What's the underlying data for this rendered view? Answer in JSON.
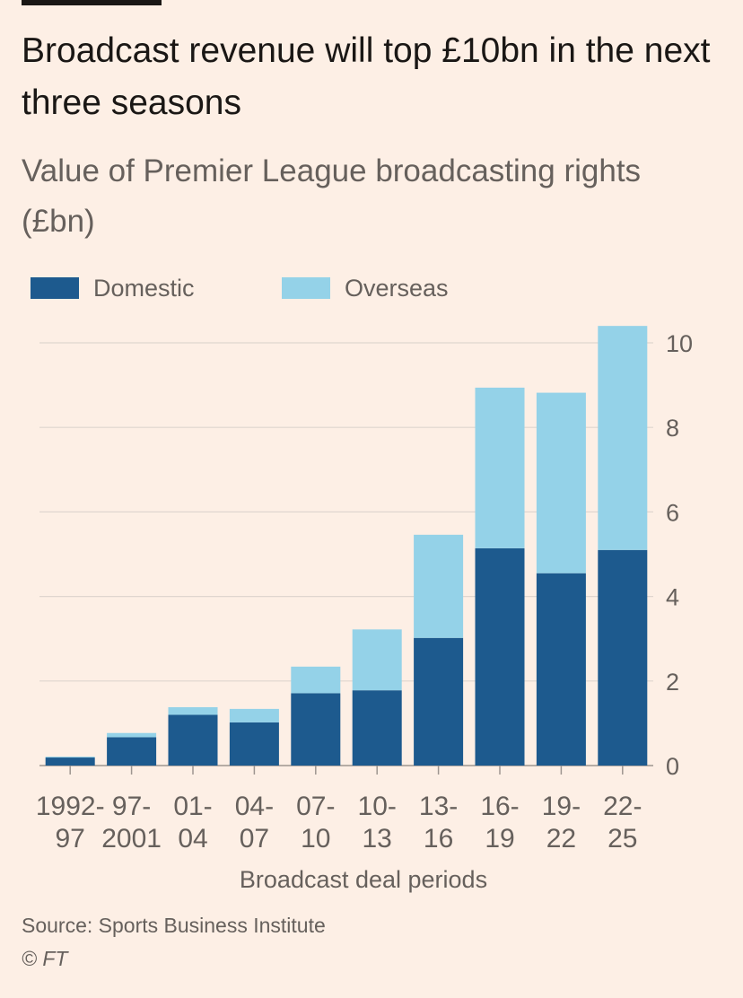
{
  "header": {
    "title": "Broadcast revenue will top £10bn in the next three seasons",
    "subtitle": "Value of Premier League broadcasting rights (£bn)"
  },
  "legend": {
    "domestic": "Domestic",
    "overseas": "Overseas"
  },
  "footer": {
    "source": "Source: Sports Business Institute",
    "copyright": "© FT"
  },
  "colors": {
    "domestic": "#1d5a8e",
    "overseas": "#94d2e8",
    "background": "#fdefe5",
    "grid": "#dfd6cf"
  },
  "chart_data": {
    "type": "bar",
    "stacked": true,
    "xlabel": "Broadcast deal periods",
    "categories": [
      [
        "1992-",
        "97"
      ],
      [
        "97-",
        "2001"
      ],
      [
        "01-",
        "04"
      ],
      [
        "04-",
        "07"
      ],
      [
        "07-",
        "10"
      ],
      [
        "10-",
        "13"
      ],
      [
        "13-",
        "16"
      ],
      [
        "16-",
        "19"
      ],
      [
        "19-",
        "22"
      ],
      [
        "22-",
        "25"
      ]
    ],
    "series": [
      {
        "name": "Domestic",
        "values": [
          0.19,
          0.67,
          1.2,
          1.02,
          1.71,
          1.78,
          3.02,
          5.14,
          4.55,
          5.1
        ]
      },
      {
        "name": "Overseas",
        "values": [
          0.02,
          0.1,
          0.18,
          0.32,
          0.63,
          1.44,
          2.44,
          3.8,
          4.27,
          5.3
        ]
      }
    ],
    "ylim": [
      0,
      10.5
    ],
    "yticks": [
      0,
      2,
      4,
      6,
      8,
      10
    ],
    "grid": true,
    "y_axis_position": "right",
    "legend_position": "top"
  }
}
